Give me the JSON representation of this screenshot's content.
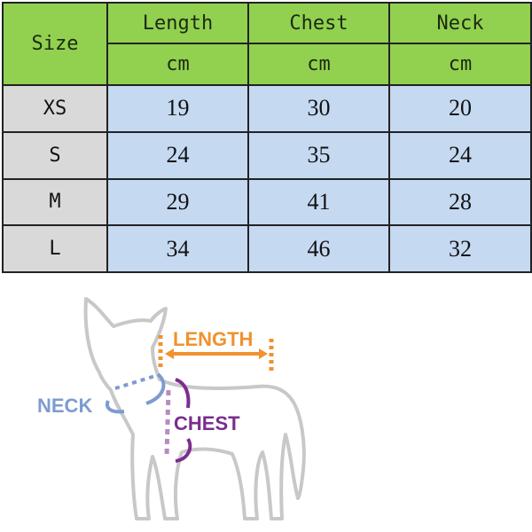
{
  "table": {
    "size_header": "Size",
    "columns": [
      {
        "label": "Length",
        "unit": "cm"
      },
      {
        "label": "Chest",
        "unit": "cm"
      },
      {
        "label": "Neck",
        "unit": "cm"
      }
    ],
    "rows": [
      {
        "size": "XS",
        "values": [
          "19",
          "30",
          "20"
        ]
      },
      {
        "size": "S",
        "values": [
          "24",
          "35",
          "24"
        ]
      },
      {
        "size": "M",
        "values": [
          "29",
          "41",
          "28"
        ]
      },
      {
        "size": "L",
        "values": [
          "34",
          "46",
          "32"
        ]
      }
    ]
  },
  "diagram": {
    "length_label": "LENGTH",
    "chest_label": "CHEST",
    "neck_label": "NECK"
  },
  "colors": {
    "header_green": "#92d050",
    "size_gray": "#d9d9d9",
    "value_blue": "#c5d9f1",
    "length_orange": "#f0922e",
    "chest_purple": "#7b2d8e",
    "neck_blue": "#7d9bd1",
    "dog_outline": "#c8c8c8"
  }
}
